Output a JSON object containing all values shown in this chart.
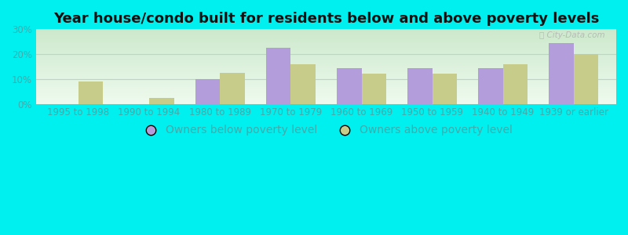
{
  "title": "Year house/condo built for residents below and above poverty levels",
  "categories": [
    "1995 to 1998",
    "1990 to 1994",
    "1980 to 1989",
    "1970 to 1979",
    "1960 to 1969",
    "1950 to 1959",
    "1940 to 1949",
    "1939 or earlier"
  ],
  "below_poverty": [
    0,
    0,
    10.0,
    22.5,
    14.5,
    14.5,
    14.5,
    24.5
  ],
  "above_poverty": [
    9.0,
    2.5,
    12.5,
    16.0,
    12.0,
    12.0,
    16.0,
    20.0
  ],
  "below_color": "#b39ddb",
  "above_color": "#c8cc8a",
  "below_label": "Owners below poverty level",
  "above_label": "Owners above poverty level",
  "ylim": [
    0,
    30
  ],
  "yticks": [
    0,
    10,
    20,
    30
  ],
  "ytick_labels": [
    "0%",
    "10%",
    "20%",
    "30%"
  ],
  "bg_gradient_top": "#cce8cc",
  "bg_gradient_bottom": "#eefaee",
  "outer_bg": "#00efef",
  "bar_width": 0.35,
  "title_fontsize": 13,
  "legend_fontsize": 10,
  "tick_fontsize": 8.5,
  "tick_color": "#44aaaa",
  "grid_color": "#aaddcc"
}
